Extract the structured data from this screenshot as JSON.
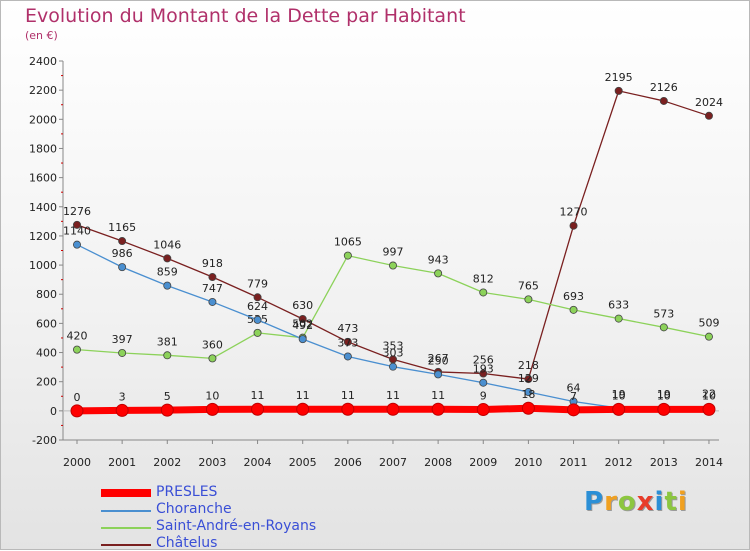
{
  "title": "Evolution du Montant de la Dette par Habitant",
  "subtitle": "(en €)",
  "logo": {
    "text": "Proxiti",
    "letters": [
      "P",
      "r",
      "o",
      "x",
      "i",
      "t",
      "i"
    ],
    "colors": [
      "#2b8fd6",
      "#f0a020",
      "#8cc63f",
      "#e83c2a",
      "#2b8fd6",
      "#8cc63f",
      "#f0a020"
    ]
  },
  "chart_data": {
    "type": "line",
    "title": "Evolution du Montant de la Dette par Habitant",
    "ylabel": "(en €)",
    "x": [
      "2000",
      "2001",
      "2002",
      "2003",
      "2004",
      "2005",
      "2006",
      "2007",
      "2008",
      "2009",
      "2010",
      "2011",
      "2012",
      "2013",
      "2014"
    ],
    "ylim": [
      -200,
      2400
    ],
    "yticks": [
      "-200",
      "0",
      "200",
      "400",
      "600",
      "800",
      "1000",
      "1200",
      "1400",
      "1600",
      "1800",
      "2000",
      "2200",
      "2400"
    ],
    "grid": false,
    "legend_position": "bottom-left",
    "series": [
      {
        "name": "PRESLES",
        "color": "#ff0000",
        "values": [
          0,
          3,
          5,
          10,
          11,
          11,
          11,
          11,
          11,
          9,
          18,
          7,
          10,
          10,
          10
        ],
        "labels": [
          "0",
          "3",
          "5",
          "10",
          "11",
          "11",
          "11",
          "11",
          "11",
          "9",
          "18",
          "7",
          "10",
          "10",
          "10"
        ]
      },
      {
        "name": "Choranche",
        "color": "#4a8fd0",
        "values": [
          1140,
          986,
          859,
          747,
          624,
          492,
          373,
          303,
          250,
          193,
          129,
          64,
          19,
          19,
          22
        ],
        "labels": [
          "1140",
          "986",
          "859",
          "747",
          "624",
          "492",
          "373",
          "303",
          "250",
          "193",
          "129",
          "64",
          "19",
          "19",
          "22"
        ]
      },
      {
        "name": "Saint-André-en-Royans",
        "color": "#8cd25a",
        "values": [
          420,
          397,
          381,
          360,
          535,
          502,
          1065,
          997,
          943,
          812,
          765,
          693,
          633,
          573,
          509
        ],
        "labels": [
          "420",
          "397",
          "381",
          "360",
          "535",
          "502",
          "1065",
          "997",
          "943",
          "812",
          "765",
          "693",
          "633",
          "573",
          "509"
        ]
      },
      {
        "name": "Châtelus",
        "color": "#7a2020",
        "values": [
          1276,
          1165,
          1046,
          918,
          779,
          630,
          473,
          353,
          267,
          256,
          218,
          1270,
          2195,
          2126,
          2024
        ],
        "labels": [
          "1276",
          "1165",
          "1046",
          "918",
          "779",
          "630",
          "473",
          "353",
          "267",
          "256",
          "218",
          "1270",
          "2195",
          "2126",
          "2024"
        ]
      }
    ]
  }
}
